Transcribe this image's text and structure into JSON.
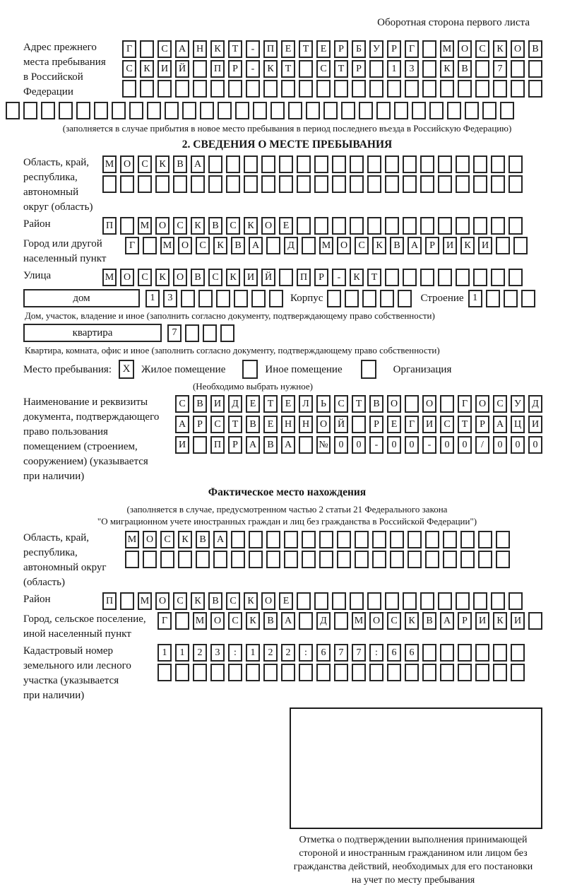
{
  "header": "Оборотная сторона первого листа",
  "prev_address": {
    "label": "Адрес прежнего\nместа пребывания\nв Российской\nФедерации",
    "rows": [
      "Г_САНКТ-ПЕТЕРБУРГ_МОСКОВ",
      "СКИЙ_ПР-КТ_СТР_13_КВ_7__",
      "________________________"
    ],
    "full_row": "_____________________________",
    "note": "(заполняется в случае прибытия в новое место пребывания в период последнего въезда в Российскую Федерацию)"
  },
  "section2": {
    "title": "2. СВЕДЕНИЯ О МЕСТЕ ПРЕБЫВАНИЯ",
    "region": {
      "label": "Область, край,\nреспублика,\nавтономный\nокруг (область)",
      "rows": [
        "МОСКВА__________________",
        "________________________"
      ]
    },
    "district": {
      "label": "Район",
      "row": "П_МОСКВСКОЕ_____________"
    },
    "city": {
      "label": "Город или другой\nнаселенный пункт",
      "row": "Г_МОСКВА_Д_МОСКВАРИКИ__"
    },
    "street": {
      "label": "Улица",
      "row": "МОСКОВСКИЙ_ПР-КТ________"
    },
    "house": {
      "box_label": "дом",
      "cells": "13______",
      "korpus_label": "Корпус",
      "korpus_cells": "_____",
      "stroenie_label": "Строение",
      "stroenie_cells": "1___"
    },
    "house_note": "Дом, участок, владение и иное (заполнить согласно документу, подтверждающему право собственности)",
    "apartment": {
      "box_label": "квартира",
      "cells": "7___"
    },
    "apartment_note": "Квартира, комната, офис и иное (заполнить согласно документу, подтверждающему право собственности)",
    "stay": {
      "label": "Место пребывания:",
      "options": [
        {
          "mark": "X",
          "label": "Жилое помещение"
        },
        {
          "mark": "",
          "label": "Иное помещение"
        },
        {
          "mark": "",
          "label": "Организация"
        }
      ],
      "note": "(Необходимо выбрать нужное)"
    },
    "document": {
      "label": "Наименование и реквизиты\nдокумента, подтверждающего\nправо пользования\nпомещением (строением,\nсооружением) (указывается\nпри наличии)",
      "rows": [
        "СВИДЕТЕЛЬСТВО_О_ГОСУД",
        "АРСТВЕННОЙ_РЕГИСТРАЦИ",
        "И_ПРАВА_№00-00-00/000"
      ]
    }
  },
  "actual_location": {
    "title": "Фактическое место нахождения",
    "note_line1": "(заполняется в случае, предусмотренном частью 2 статьи 21 Федерального закона",
    "note_line2": "\"О миграционном учете иностранных граждан и лиц без гражданства в Российской Федерации\")",
    "region": {
      "label": "Область, край,\nреспублика,\nавтономный округ\n(область)",
      "rows": [
        "МОСКВА________________",
        "______________________"
      ]
    },
    "district": {
      "label": "Район",
      "row": "П_МОСКВСКОЕ_____________"
    },
    "city": {
      "label": "Город, сельское поселение,\nиной населенный пункт",
      "row": "Г_МОСКВА_Д_МОСКВАРИКИ_"
    },
    "cadastre": {
      "label": "Кадастровый номер\nземельного или лесного\nучастка (указывается\nпри наличии)",
      "rows": [
        "1123:122:677:66______",
        "_____________________"
      ]
    }
  },
  "stamp_caption": "Отметка о подтверждении выполнения принимающей\nстороной и иностранным гражданином или лицом без\nгражданства действий, необходимых для его постановки\nна учет по месту пребывания"
}
